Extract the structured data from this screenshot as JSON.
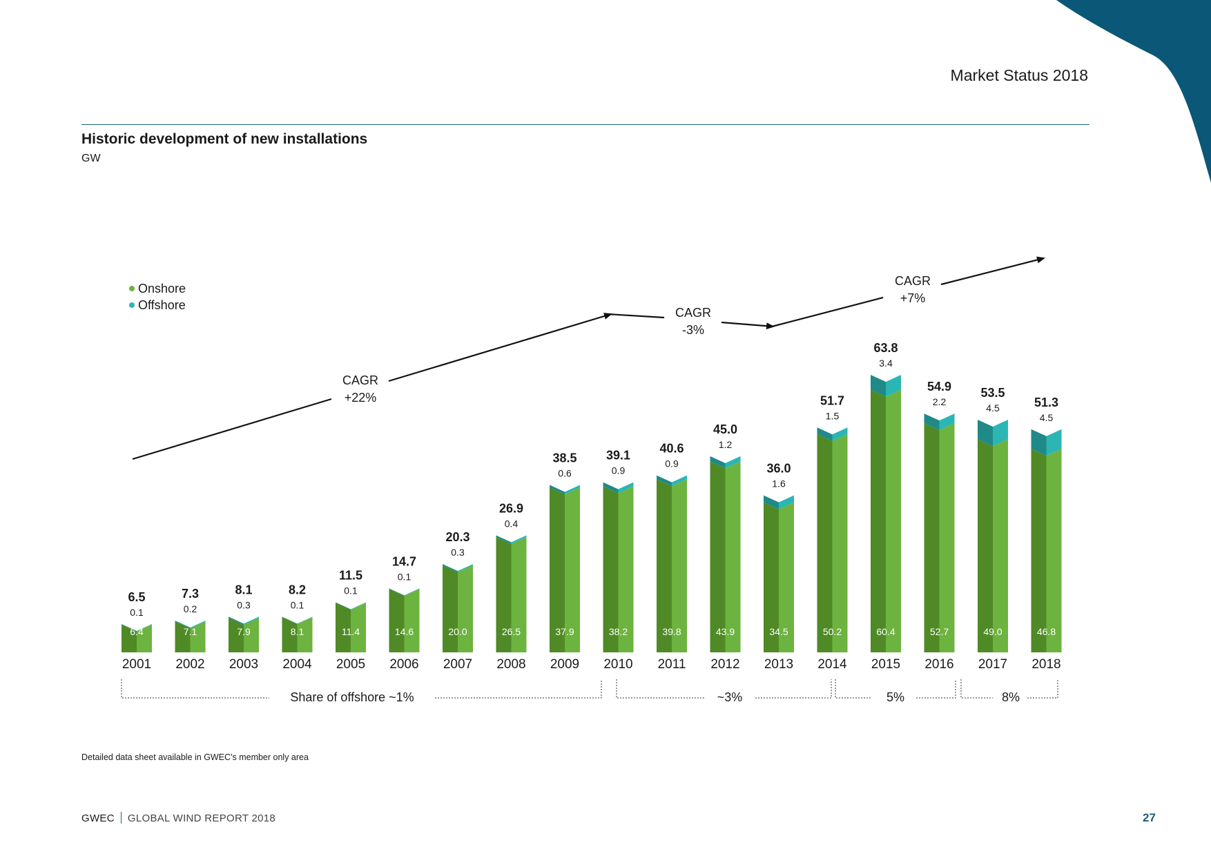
{
  "header": {
    "section_title": "Market Status 2018"
  },
  "title": "Historic development of new installations",
  "unit": "GW",
  "footnote": "Detailed data sheet available in GWEC's member only area",
  "footer": {
    "brand": "GWEC",
    "report": "GLOBAL WIND REPORT 2018",
    "page": "27"
  },
  "colors": {
    "onshore": "#6db33f",
    "onshore_dark": "#4f8a26",
    "offshore": "#2bb6b4",
    "offshore_dark": "#1f8a88",
    "accent": "#0b5777",
    "rule": "#1d5f78"
  },
  "chart_data": {
    "type": "bar",
    "stacked": true,
    "title": "Historic development of new installations",
    "ylabel": "GW",
    "categories": [
      "2001",
      "2002",
      "2003",
      "2004",
      "2005",
      "2006",
      "2007",
      "2008",
      "2009",
      "2010",
      "2011",
      "2012",
      "2013",
      "2014",
      "2015",
      "2016",
      "2017",
      "2018"
    ],
    "series": [
      {
        "name": "Onshore",
        "values": [
          "6.4",
          "7.1",
          "7.9",
          "8.1",
          "11.4",
          "14.6",
          "20.0",
          "26.5",
          "37.9",
          "38.2",
          "39.8",
          "43.9",
          "34.5",
          "50.2",
          "60.4",
          "52.7",
          "49.0",
          "46.8"
        ]
      },
      {
        "name": "Offshore",
        "values": [
          "0.1",
          "0.2",
          "0.3",
          "0.1",
          "0.1",
          "0.1",
          "0.3",
          "0.4",
          "0.6",
          "0.9",
          "0.9",
          "1.2",
          "1.6",
          "1.5",
          "3.4",
          "2.2",
          "4.5",
          "4.5"
        ]
      }
    ],
    "totals": [
      "6.5",
      "7.3",
      "8.1",
      "8.2",
      "11.5",
      "14.7",
      "20.3",
      "26.9",
      "38.5",
      "39.1",
      "40.6",
      "45.0",
      "36.0",
      "51.7",
      "63.8",
      "54.9",
      "53.5",
      "51.3"
    ],
    "legend": [
      "Onshore",
      "Offshore"
    ],
    "legend_position": "top-left",
    "annotations": {
      "cagr": [
        {
          "label": "CAGR",
          "value": "+22%",
          "period": "2001-2010"
        },
        {
          "label": "CAGR",
          "value": "-3%",
          "period": "2010-2013"
        },
        {
          "label": "CAGR",
          "value": "+7%",
          "period": "2013-2018"
        }
      ],
      "offshore_share": [
        {
          "label": "Share of offshore ~1%",
          "from": "2001",
          "to": "2010"
        },
        {
          "label": "~3%",
          "from": "2010",
          "to": "2014"
        },
        {
          "label": "5%",
          "from": "2014",
          "to": "2016"
        },
        {
          "label": "8%",
          "from": "2016",
          "to": "2018"
        }
      ]
    }
  }
}
